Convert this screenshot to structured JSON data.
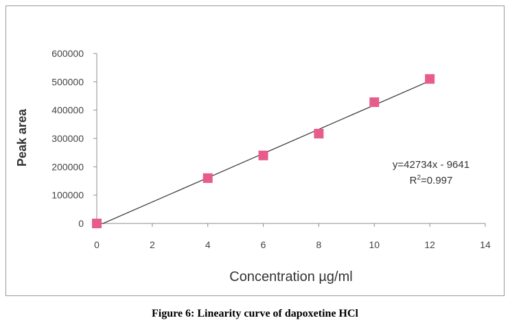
{
  "chart_data": {
    "type": "scatter",
    "title": "",
    "xlabel": "Concentration µg/ml",
    "ylabel": "Peak  area",
    "xlim": [
      0,
      14
    ],
    "ylim": [
      0,
      600000
    ],
    "x_ticks": [
      0,
      2,
      4,
      6,
      8,
      10,
      12,
      14
    ],
    "y_ticks": [
      0,
      100000,
      200000,
      300000,
      400000,
      500000,
      600000
    ],
    "x_tick_labels": [
      "0",
      "2",
      "4",
      "6",
      "8",
      "10",
      "12",
      "14"
    ],
    "y_tick_labels": [
      "0",
      "100000",
      "200000",
      "300000",
      "400000",
      "500000",
      "600000"
    ],
    "grid": false,
    "legend": "none",
    "series": [
      {
        "x": [
          0,
          4,
          6,
          8,
          10,
          12
        ],
        "y": [
          0,
          160000,
          240000,
          317000,
          428000,
          510000
        ],
        "marker": "square",
        "color": "#e75c8a"
      }
    ],
    "trendline": {
      "slope": 42734,
      "intercept": -9641,
      "x_range": [
        0,
        12
      ],
      "color": "#404040"
    },
    "annotations": {
      "equation": "y=42734x - 9641",
      "r_squared": "R²=0.997"
    }
  },
  "caption": "Figure 6: Linearity curve of dapoxetine HCl"
}
